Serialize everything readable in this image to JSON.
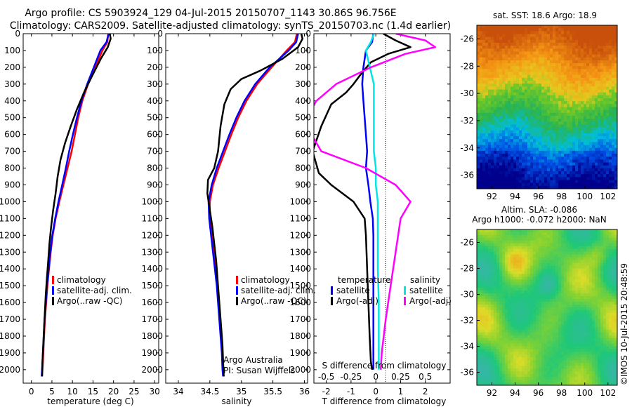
{
  "header": {
    "line1": "Argo profile: CS 5903924_129 04-Jul-2015 20150707_1143 30.86S 96.756E",
    "line2": "Climatology: CARS2009. Satellite-adjusted climatology: synTS_20150703.nc (1.4d earlier)"
  },
  "colors": {
    "climatology": "#ff0000",
    "satellite": "#0000ff",
    "argo": "#000000",
    "sal_satellite": "#00e5e5",
    "sal_argo": "#ff00ff"
  },
  "chart_data": [
    {
      "type": "line",
      "name": "temperature",
      "xlabel": "temperature (deg C)",
      "ylabel": "",
      "xlim": [
        -2,
        31
      ],
      "ylim": [
        2080,
        0
      ],
      "xticks": [
        0,
        5,
        10,
        15,
        20,
        25,
        30
      ],
      "yticks": [
        0,
        100,
        200,
        300,
        400,
        500,
        600,
        700,
        800,
        900,
        1000,
        1100,
        1200,
        1300,
        1400,
        1500,
        1600,
        1700,
        1800,
        1900,
        2000
      ],
      "legend": [
        "climatology",
        "satellite-adj. clim.",
        "Argo(..raw -QC)"
      ],
      "series": [
        {
          "name": "climatology",
          "color": "#ff0000",
          "points": [
            [
              18.7,
              0
            ],
            [
              18.5,
              50
            ],
            [
              17.3,
              100
            ],
            [
              15.6,
              200
            ],
            [
              13.8,
              300
            ],
            [
              12.4,
              400
            ],
            [
              11.4,
              500
            ],
            [
              10.6,
              600
            ],
            [
              9.8,
              700
            ],
            [
              8.8,
              800
            ],
            [
              7.8,
              900
            ],
            [
              6.8,
              1000
            ],
            [
              5.9,
              1100
            ],
            [
              5.2,
              1200
            ],
            [
              4.7,
              1300
            ],
            [
              4.3,
              1400
            ],
            [
              3.9,
              1500
            ],
            [
              3.6,
              1600
            ],
            [
              3.3,
              1700
            ],
            [
              3.1,
              1800
            ],
            [
              2.9,
              1900
            ],
            [
              2.7,
              2000
            ],
            [
              2.6,
              2040
            ]
          ]
        },
        {
          "name": "satellite-adj. clim.",
          "color": "#0000ff",
          "points": [
            [
              18.8,
              0
            ],
            [
              18.3,
              50
            ],
            [
              16.8,
              100
            ],
            [
              15.2,
              200
            ],
            [
              13.6,
              300
            ],
            [
              12.2,
              400
            ],
            [
              11.1,
              500
            ],
            [
              10.1,
              600
            ],
            [
              9.2,
              700
            ],
            [
              8.4,
              800
            ],
            [
              7.5,
              900
            ],
            [
              6.6,
              1000
            ],
            [
              5.8,
              1100
            ],
            [
              5.1,
              1200
            ],
            [
              4.6,
              1300
            ],
            [
              4.2,
              1400
            ],
            [
              3.8,
              1500
            ],
            [
              3.5,
              1600
            ],
            [
              3.2,
              1700
            ],
            [
              3.0,
              1800
            ],
            [
              2.8,
              1900
            ],
            [
              2.6,
              2000
            ],
            [
              2.5,
              2040
            ]
          ]
        },
        {
          "name": "Argo(..raw -QC)",
          "color": "#000000",
          "points": [
            [
              19.1,
              0
            ],
            [
              19.3,
              30
            ],
            [
              18.6,
              80
            ],
            [
              16.9,
              150
            ],
            [
              14.8,
              250
            ],
            [
              12.8,
              350
            ],
            [
              11.1,
              450
            ],
            [
              9.6,
              550
            ],
            [
              8.2,
              650
            ],
            [
              7.1,
              750
            ],
            [
              6.4,
              850
            ],
            [
              5.9,
              950
            ],
            [
              5.3,
              1050
            ],
            [
              4.8,
              1150
            ],
            [
              4.4,
              1250
            ],
            [
              4.1,
              1350
            ],
            [
              3.8,
              1450
            ],
            [
              3.5,
              1550
            ],
            [
              3.3,
              1650
            ],
            [
              3.1,
              1750
            ],
            [
              2.9,
              1850
            ],
            [
              2.7,
              1950
            ],
            [
              2.6,
              2040
            ]
          ]
        }
      ]
    },
    {
      "type": "line",
      "name": "salinity",
      "xlabel": "salinity",
      "xlim": [
        33.8,
        36.05
      ],
      "ylim": [
        2080,
        0
      ],
      "xticks": [
        34,
        34.5,
        35,
        35.5,
        36
      ],
      "legend": [
        "climatology",
        "satellite-adj. clim.",
        "Argo(..raw -QC)"
      ],
      "note": [
        "Argo Australia",
        "PI: Susan Wijffels"
      ],
      "series": [
        {
          "name": "climatology",
          "color": "#ff0000",
          "points": [
            [
              35.88,
              0
            ],
            [
              35.85,
              50
            ],
            [
              35.72,
              100
            ],
            [
              35.48,
              200
            ],
            [
              35.25,
              300
            ],
            [
              35.08,
              400
            ],
            [
              34.95,
              500
            ],
            [
              34.84,
              600
            ],
            [
              34.74,
              700
            ],
            [
              34.64,
              800
            ],
            [
              34.55,
              900
            ],
            [
              34.5,
              1000
            ],
            [
              34.5,
              1100
            ],
            [
              34.53,
              1200
            ],
            [
              34.56,
              1300
            ],
            [
              34.59,
              1400
            ],
            [
              34.62,
              1500
            ],
            [
              34.64,
              1600
            ],
            [
              34.66,
              1700
            ],
            [
              34.68,
              1800
            ],
            [
              34.7,
              1900
            ],
            [
              34.71,
              2000
            ],
            [
              34.72,
              2040
            ]
          ]
        },
        {
          "name": "satellite-adj. clim.",
          "color": "#0000ff",
          "points": [
            [
              35.9,
              0
            ],
            [
              35.87,
              50
            ],
            [
              35.75,
              100
            ],
            [
              35.45,
              200
            ],
            [
              35.22,
              300
            ],
            [
              35.05,
              400
            ],
            [
              34.92,
              500
            ],
            [
              34.81,
              600
            ],
            [
              34.71,
              700
            ],
            [
              34.61,
              800
            ],
            [
              34.53,
              900
            ],
            [
              34.48,
              1000
            ],
            [
              34.49,
              1100
            ],
            [
              34.52,
              1200
            ],
            [
              34.55,
              1300
            ],
            [
              34.58,
              1400
            ],
            [
              34.61,
              1500
            ],
            [
              34.63,
              1600
            ],
            [
              34.65,
              1700
            ],
            [
              34.67,
              1800
            ],
            [
              34.69,
              1900
            ],
            [
              34.7,
              2000
            ],
            [
              34.71,
              2040
            ]
          ]
        },
        {
          "name": "Argo(..raw -QC)",
          "color": "#000000",
          "points": [
            [
              35.95,
              0
            ],
            [
              35.97,
              30
            ],
            [
              35.9,
              80
            ],
            [
              35.65,
              150
            ],
            [
              35.3,
              220
            ],
            [
              35.0,
              270
            ],
            [
              34.83,
              330
            ],
            [
              34.73,
              420
            ],
            [
              34.67,
              550
            ],
            [
              34.63,
              700
            ],
            [
              34.57,
              800
            ],
            [
              34.47,
              870
            ],
            [
              34.46,
              950
            ],
            [
              34.5,
              1050
            ],
            [
              34.54,
              1150
            ],
            [
              34.57,
              1250
            ],
            [
              34.6,
              1350
            ],
            [
              34.62,
              1450
            ],
            [
              34.64,
              1550
            ],
            [
              34.66,
              1650
            ],
            [
              34.68,
              1750
            ],
            [
              34.7,
              1850
            ],
            [
              34.71,
              1950
            ],
            [
              34.72,
              2040
            ]
          ]
        }
      ]
    },
    {
      "type": "line",
      "name": "differences",
      "xlabel": "T difference from climatology",
      "xlabel_top": "S difference from climatology",
      "xlim": [
        -2.5,
        3.0
      ],
      "ylim": [
        2080,
        0
      ],
      "xticks": [
        -2,
        -1,
        0,
        1,
        2
      ],
      "xticks_top": [
        "-0.5",
        "-0.25",
        "0",
        "0.25",
        "0.5"
      ],
      "legend_temperature": "temperature",
      "legend_salinity": "salinity",
      "legend_entries": [
        "satellite",
        "Argo(-adj)",
        "satellite",
        "Argo(-adj)"
      ],
      "series": [
        {
          "name": "temperature satellite",
          "color": "#0000ff",
          "points": [
            [
              -0.1,
              0
            ],
            [
              -0.15,
              50
            ],
            [
              -0.4,
              100
            ],
            [
              -0.5,
              200
            ],
            [
              -0.55,
              300
            ],
            [
              -0.5,
              400
            ],
            [
              -0.45,
              500
            ],
            [
              -0.4,
              600
            ],
            [
              -0.35,
              700
            ],
            [
              -0.4,
              800
            ],
            [
              -0.3,
              900
            ],
            [
              -0.22,
              1000
            ],
            [
              -0.12,
              1100
            ],
            [
              -0.1,
              1200
            ],
            [
              -0.1,
              1300
            ],
            [
              -0.1,
              1400
            ],
            [
              -0.1,
              1500
            ],
            [
              -0.1,
              1600
            ],
            [
              -0.1,
              1700
            ],
            [
              -0.1,
              1800
            ],
            [
              -0.1,
              1900
            ],
            [
              -0.1,
              2000
            ]
          ]
        },
        {
          "name": "temperature Argo(-adj)",
          "color": "#000000",
          "points": [
            [
              0.3,
              0
            ],
            [
              0.8,
              40
            ],
            [
              1.4,
              80
            ],
            [
              0.5,
              120
            ],
            [
              -0.2,
              170
            ],
            [
              -0.6,
              240
            ],
            [
              -0.9,
              300
            ],
            [
              -1.2,
              350
            ],
            [
              -1.8,
              420
            ],
            [
              -2.2,
              550
            ],
            [
              -2.55,
              700
            ],
            [
              -2.3,
              830
            ],
            [
              -1.8,
              900
            ],
            [
              -0.9,
              1000
            ],
            [
              -0.45,
              1100
            ],
            [
              -0.4,
              1200
            ],
            [
              -0.35,
              1400
            ],
            [
              -0.3,
              1600
            ],
            [
              -0.25,
              1800
            ],
            [
              -0.2,
              1950
            ],
            [
              -0.15,
              2000
            ]
          ]
        },
        {
          "name": "salinity satellite",
          "color": "#00e5e5",
          "points": [
            [
              -0.02,
              0
            ],
            [
              -0.05,
              50
            ],
            [
              -0.1,
              100
            ],
            [
              -0.06,
              200
            ],
            [
              -0.02,
              300
            ],
            [
              -0.02,
              400
            ],
            [
              -0.02,
              500
            ],
            [
              -0.02,
              600
            ],
            [
              -0.02,
              700
            ],
            [
              0.0,
              800
            ],
            [
              0.0,
              900
            ],
            [
              0.02,
              1000
            ],
            [
              0.02,
              1200
            ],
            [
              0.02,
              1400
            ],
            [
              0.03,
              1600
            ],
            [
              0.03,
              1800
            ],
            [
              0.03,
              2000
            ]
          ]
        },
        {
          "name": "salinity Argo(-adj)",
          "color": "#ff00ff",
          "points": [
            [
              0.2,
              0
            ],
            [
              0.5,
              40
            ],
            [
              0.6,
              80
            ],
            [
              0.3,
              120
            ],
            [
              -0.05,
              200
            ],
            [
              -0.4,
              300
            ],
            [
              -0.6,
              400
            ],
            [
              -0.7,
              500
            ],
            [
              -0.65,
              600
            ],
            [
              -0.55,
              700
            ],
            [
              -0.1,
              800
            ],
            [
              0.2,
              900
            ],
            [
              0.35,
              1000
            ],
            [
              0.25,
              1100
            ],
            [
              0.2,
              1300
            ],
            [
              0.15,
              1500
            ],
            [
              0.1,
              1700
            ],
            [
              0.06,
              1900
            ],
            [
              0.05,
              2000
            ]
          ]
        }
      ]
    },
    {
      "type": "heatmap",
      "name": "sst_map",
      "title": "sat. SST: 18.6  Argo: 18.9",
      "xticks": [
        92,
        94,
        96,
        98,
        100,
        102
      ],
      "yticks": [
        -26,
        -28,
        -30,
        -32,
        -34,
        -36
      ],
      "xlim": [
        90.7,
        102.8
      ],
      "ylim": [
        -37,
        -25
      ]
    },
    {
      "type": "heatmap",
      "name": "sla_map",
      "title_line1": "Altim. SLA: -0.086",
      "title_line2": "Argo h1000: -0.072  h2000: NaN",
      "xticks": [
        92,
        94,
        96,
        98,
        100,
        102
      ],
      "yticks": [
        -26,
        -28,
        -30,
        -32,
        -34,
        -36
      ],
      "xlim": [
        90.7,
        102.8
      ],
      "ylim": [
        -37,
        -25
      ]
    }
  ],
  "credit": "©IMOS 10-Jul-2015 20:48:59"
}
